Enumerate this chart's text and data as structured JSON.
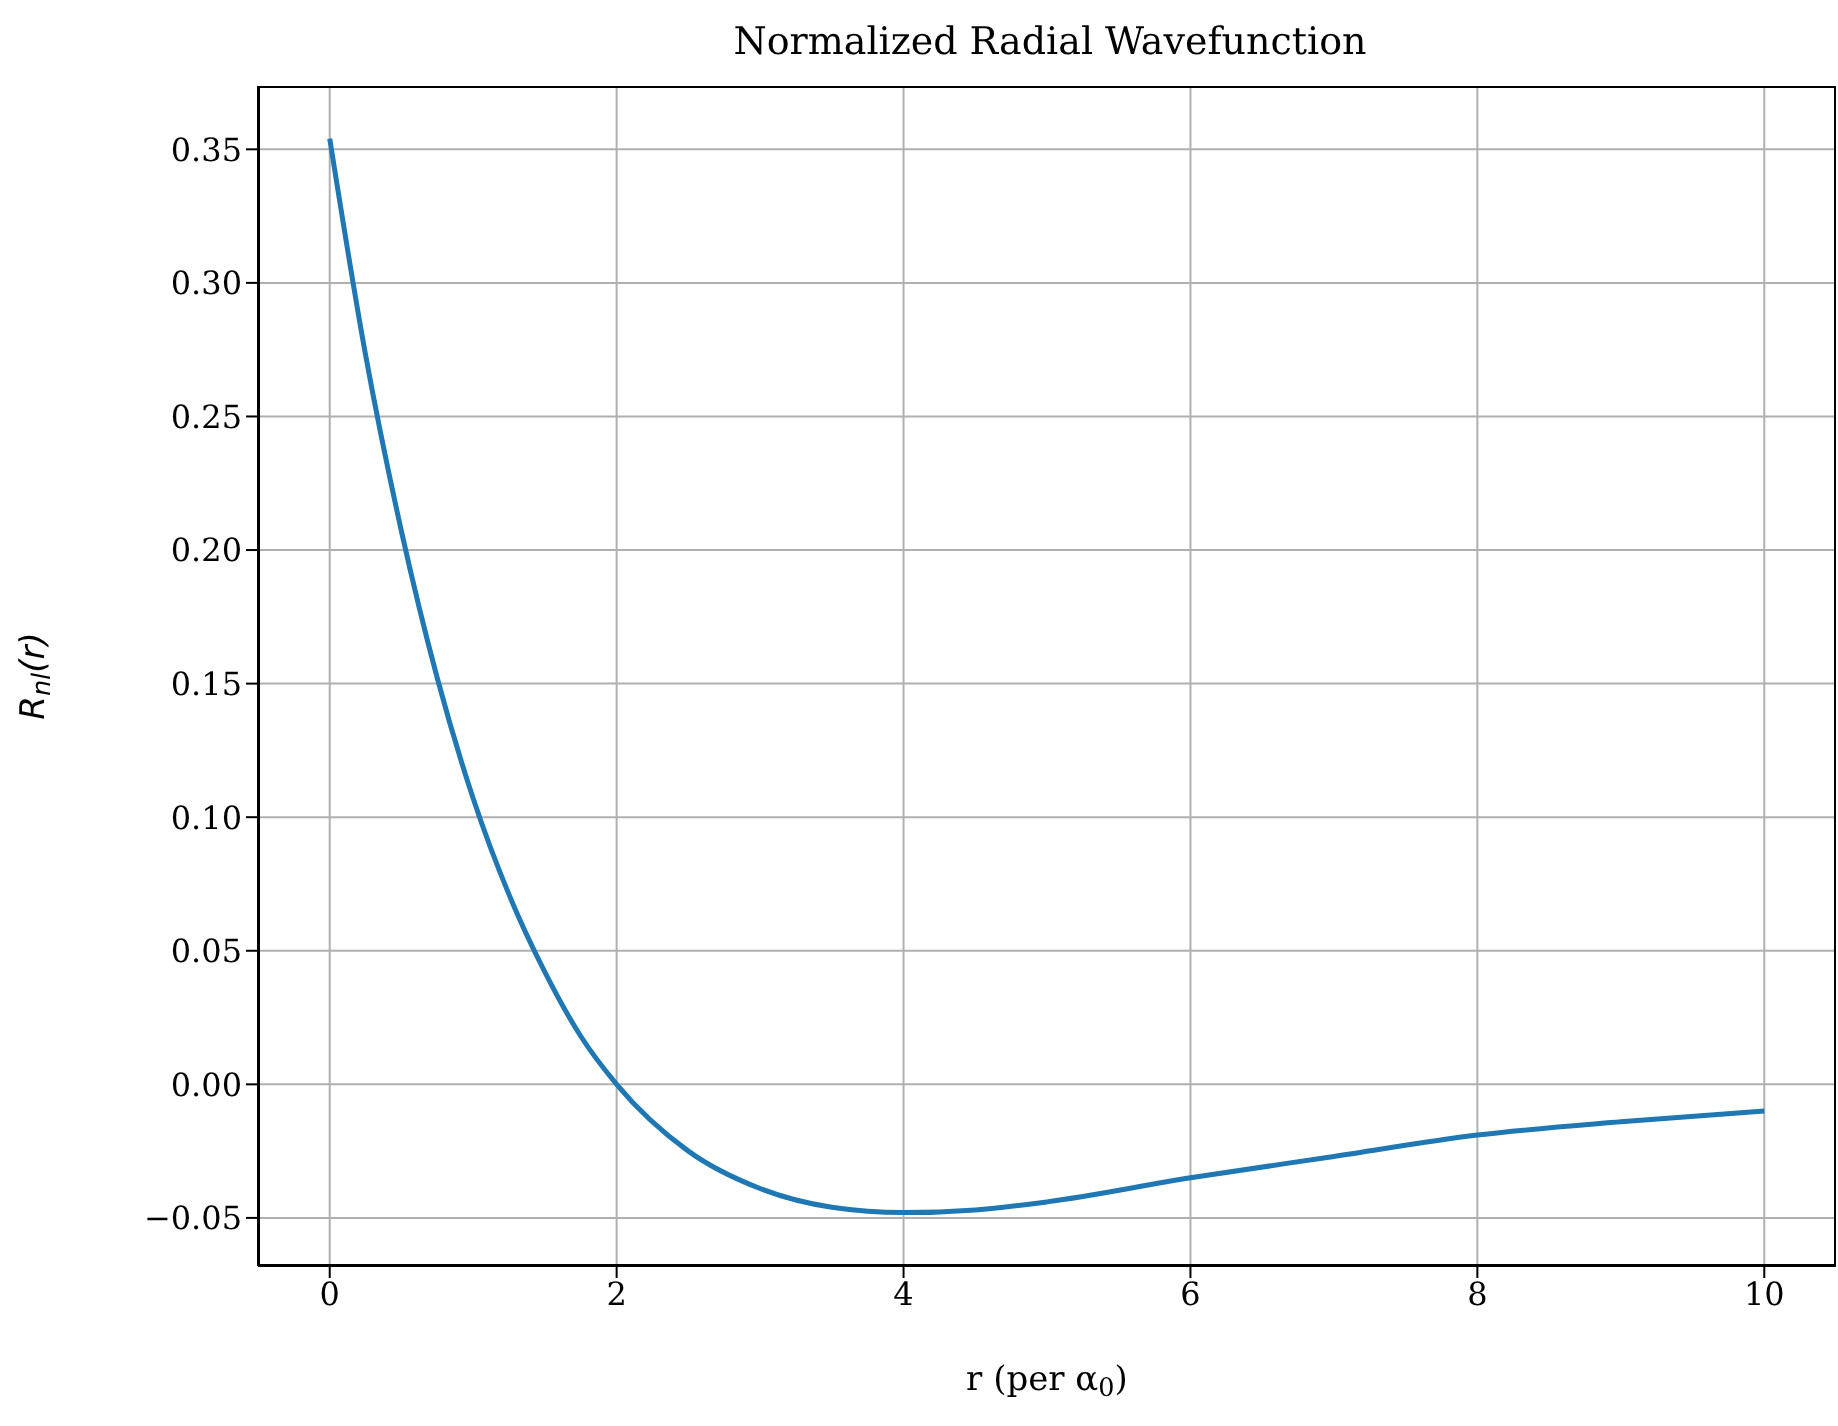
{
  "chart_data": {
    "type": "line",
    "title": "Normalized Radial Wavefunction",
    "xlabel": "r (per α$_{0}$)",
    "ylabel": "R$_{nl}$(r)",
    "x": [
      0,
      0.25,
      0.5,
      0.75,
      1,
      1.25,
      1.5,
      1.75,
      2,
      2.5,
      3,
      3.5,
      4,
      4.5,
      5,
      6,
      7,
      8,
      9,
      10
    ],
    "series": [
      {
        "color": "#1f77b4",
        "values": [
          0.354,
          0.273,
          0.207,
          0.152,
          0.107,
          0.071,
          0.042,
          0.018,
          0,
          -0.025,
          -0.039,
          -0.046,
          -0.048,
          -0.047,
          -0.044,
          -0.035,
          -0.027,
          -0.019,
          -0.014,
          -0.01
        ]
      }
    ],
    "xlim": [
      -0.5,
      10.5
    ],
    "xticks": [
      0,
      2,
      4,
      6,
      8,
      10
    ],
    "ylim": [
      -0.068,
      0.3737
    ],
    "yticks": [
      {
        "value": -0.05,
        "label": "−0.05"
      },
      {
        "value": 0,
        "label": "0.00"
      },
      {
        "value": 0.05,
        "label": "0.05"
      },
      {
        "value": 0.1,
        "label": "0.10"
      },
      {
        "value": 0.15,
        "label": "0.15"
      },
      {
        "value": 0.2,
        "label": "0.20"
      },
      {
        "value": 0.25,
        "label": "0.25"
      },
      {
        "value": 0.3,
        "label": "0.30"
      },
      {
        "value": 0.35,
        "label": "0.35"
      }
    ],
    "grid": true,
    "marker": "none",
    "line_style": "solid"
  }
}
